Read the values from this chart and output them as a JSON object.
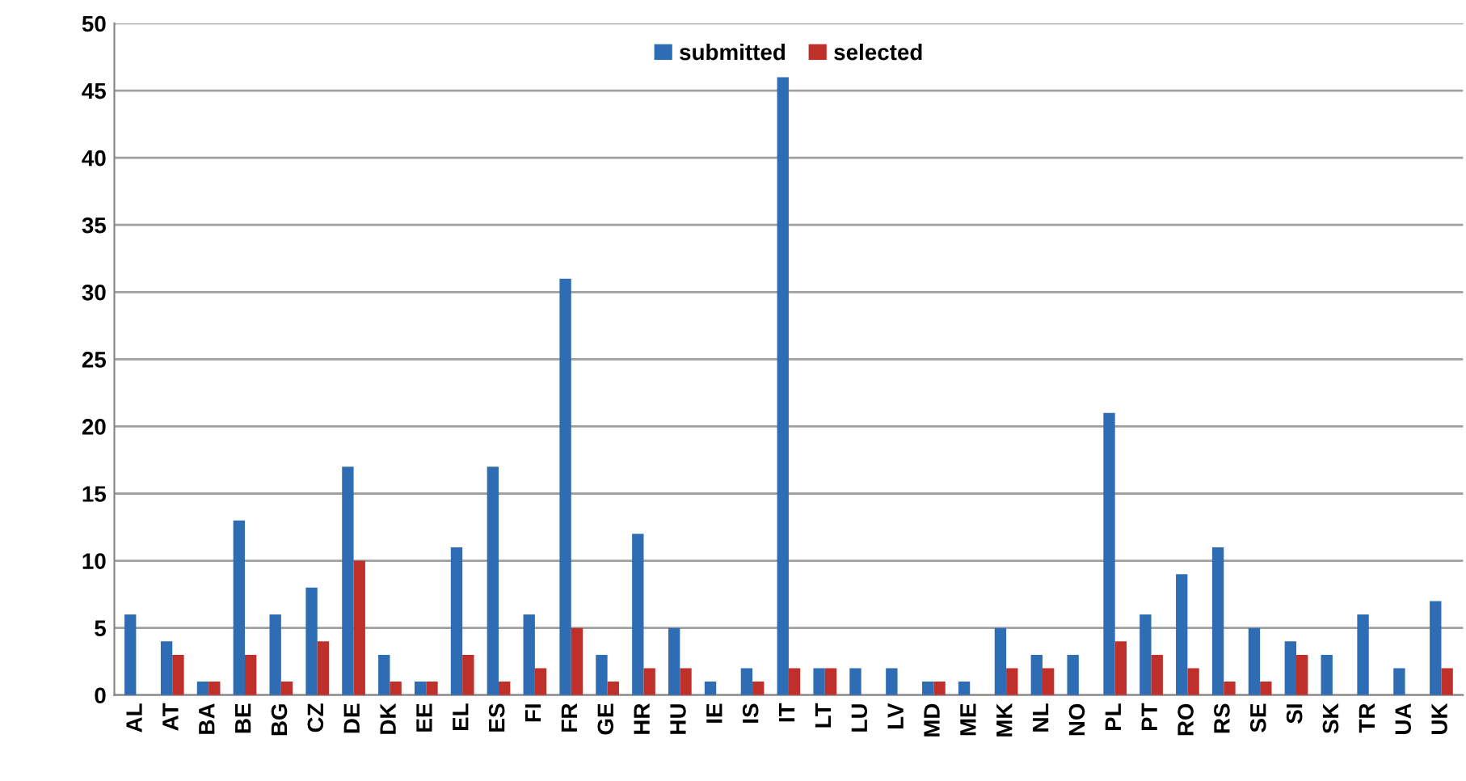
{
  "chart_data": {
    "type": "bar",
    "categories": [
      "AL",
      "AT",
      "BA",
      "BE",
      "BG",
      "CZ",
      "DE",
      "DK",
      "EE",
      "EL",
      "ES",
      "FI",
      "FR",
      "GE",
      "HR",
      "HU",
      "IE",
      "IS",
      "IT",
      "LT",
      "LU",
      "LV",
      "MD",
      "ME",
      "MK",
      "NL",
      "NO",
      "PL",
      "PT",
      "RO",
      "RS",
      "SE",
      "SI",
      "SK",
      "TR",
      "UA",
      "UK"
    ],
    "series": [
      {
        "name": "submitted",
        "color": "#2e6db4",
        "values": [
          6,
          4,
          1,
          13,
          6,
          8,
          17,
          3,
          1,
          11,
          17,
          6,
          31,
          3,
          12,
          5,
          1,
          2,
          46,
          2,
          2,
          2,
          1,
          1,
          5,
          3,
          3,
          21,
          6,
          9,
          11,
          5,
          4,
          3,
          6,
          2,
          7
        ]
      },
      {
        "name": "selected",
        "color": "#c0302b",
        "values": [
          0,
          3,
          1,
          3,
          1,
          4,
          10,
          1,
          1,
          3,
          1,
          2,
          5,
          1,
          2,
          2,
          0,
          1,
          2,
          2,
          0,
          0,
          1,
          0,
          2,
          2,
          0,
          4,
          3,
          2,
          1,
          1,
          3,
          0,
          0,
          0,
          2
        ]
      }
    ],
    "ylim": [
      0,
      50
    ],
    "yticks": [
      0,
      5,
      10,
      15,
      20,
      25,
      30,
      35,
      40,
      45,
      50
    ],
    "grid": "y",
    "legend": "top"
  }
}
